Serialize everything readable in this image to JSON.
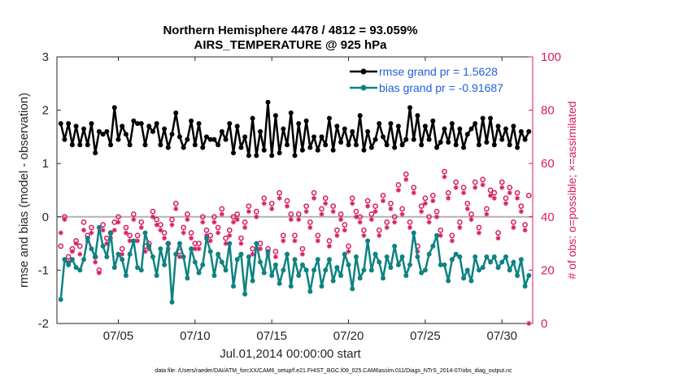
{
  "chart_data": {
    "type": "line",
    "title_line1": "Northern Hemisphere 4478 / 4812 = 93.059%",
    "title_line2": "AIRS_TEMPERATURE @ 925 hPa",
    "xlabel": "Jul.01,2014 00:00:00 start",
    "ylabel_left": "rmse and bias (model - observation)",
    "ylabel_right": "# of obs: o=possible; ×=assimilated",
    "ylim_left": [
      -2,
      3
    ],
    "ylim_right": [
      0,
      100
    ],
    "xlim": [
      1,
      32
    ],
    "xticks": [
      {
        "value": 5,
        "label": "07/05"
      },
      {
        "value": 10,
        "label": "07/10"
      },
      {
        "value": 15,
        "label": "07/15"
      },
      {
        "value": 20,
        "label": "07/20"
      },
      {
        "value": 25,
        "label": "07/25"
      },
      {
        "value": 30,
        "label": "07/30"
      }
    ],
    "yticks_left": [
      "-2",
      "-1",
      "0",
      "1",
      "2",
      "3"
    ],
    "yticks_right": [
      "0",
      "20",
      "40",
      "60",
      "80",
      "100"
    ],
    "legend": [
      "rmse grand pr = 1.5628",
      "bias grand pr = -0.91687"
    ],
    "footnote": "data file: /Users/raeder/DAI/ATM_forcXX/CAM6_setup/f.e21.FHIST_BGC.f09_025.CAM6assim.011/Diags_NTrS_2014-07/obs_diag_output.nc",
    "colors": {
      "rmse": "#000000",
      "bias": "#0e8282",
      "obs": "#d81b60",
      "zero": "#b3b3b3"
    },
    "series": [
      {
        "name": "rmse",
        "x": [
          1.25,
          1.5,
          1.75,
          2,
          2.25,
          2.5,
          2.75,
          3,
          3.25,
          3.5,
          3.75,
          4,
          4.25,
          4.5,
          4.75,
          5,
          5.25,
          5.5,
          5.75,
          6,
          6.25,
          6.5,
          6.75,
          7,
          7.25,
          7.5,
          7.75,
          8,
          8.25,
          8.5,
          8.75,
          9,
          9.25,
          9.5,
          9.75,
          10,
          10.25,
          10.5,
          10.75,
          11,
          11.25,
          11.5,
          11.75,
          12,
          12.25,
          12.5,
          12.75,
          13,
          13.25,
          13.5,
          13.75,
          14,
          14.25,
          14.5,
          14.75,
          15,
          15.25,
          15.5,
          15.75,
          16,
          16.25,
          16.5,
          16.75,
          17,
          17.25,
          17.5,
          17.75,
          18,
          18.25,
          18.5,
          18.75,
          19,
          19.25,
          19.5,
          19.75,
          20,
          20.25,
          20.5,
          20.75,
          21,
          21.25,
          21.5,
          21.75,
          22,
          22.25,
          22.5,
          22.75,
          23,
          23.25,
          23.5,
          23.75,
          24,
          24.25,
          24.5,
          24.75,
          25,
          25.25,
          25.5,
          25.75,
          26,
          26.25,
          26.5,
          26.75,
          27,
          27.25,
          27.5,
          27.75,
          28,
          28.25,
          28.5,
          28.75,
          29,
          29.25,
          29.5,
          29.75,
          30,
          30.25,
          30.5,
          30.75,
          31,
          31.25,
          31.5,
          31.75
        ],
        "values": [
          1.75,
          1.45,
          1.75,
          1.35,
          1.7,
          1.35,
          1.65,
          1.35,
          1.75,
          1.2,
          1.6,
          1.55,
          1.6,
          1.35,
          2.05,
          1.45,
          1.7,
          1.55,
          1.35,
          1.8,
          1.75,
          1.75,
          1.35,
          1.7,
          1.6,
          1.75,
          1.35,
          1.65,
          1.3,
          1.55,
          1.95,
          1.5,
          1.3,
          1.45,
          1.8,
          1.35,
          1.75,
          1.3,
          1.5,
          1.45,
          1.45,
          1.35,
          1.6,
          1.45,
          1.75,
          1.2,
          1.7,
          1.3,
          1.5,
          1.15,
          1.85,
          1.15,
          1.6,
          1.25,
          2.15,
          1.15,
          1.9,
          1.2,
          1.65,
          1.35,
          1.95,
          1.15,
          1.75,
          1.25,
          1.8,
          1.3,
          1.5,
          1.25,
          1.5,
          1.35,
          1.85,
          1.25,
          1.7,
          1.4,
          1.65,
          1.35,
          1.6,
          1.35,
          1.9,
          1.25,
          1.6,
          1.3,
          1.45,
          1.75,
          1.5,
          1.35,
          1.75,
          1.3,
          1.7,
          1.35,
          1.45,
          2.05,
          1.45,
          1.9,
          1.35,
          1.7,
          1.45,
          1.8,
          1.3,
          1.4,
          1.65,
          1.4,
          1.75,
          1.35,
          1.65,
          1.3,
          1.55,
          1.65,
          1.75,
          1.35,
          1.85,
          1.4,
          1.85,
          1.35,
          1.7,
          1.45,
          1.65,
          1.35,
          1.7,
          1.3,
          1.6,
          1.45,
          1.6
        ]
      },
      {
        "name": "bias",
        "x": [
          1.25,
          1.5,
          1.75,
          2,
          2.25,
          2.5,
          2.75,
          3,
          3.25,
          3.5,
          3.75,
          4,
          4.25,
          4.5,
          4.75,
          5,
          5.25,
          5.5,
          5.75,
          6,
          6.25,
          6.5,
          6.75,
          7,
          7.25,
          7.5,
          7.75,
          8,
          8.25,
          8.5,
          8.75,
          9,
          9.25,
          9.5,
          9.75,
          10,
          10.25,
          10.5,
          10.75,
          11,
          11.25,
          11.5,
          11.75,
          12,
          12.25,
          12.5,
          12.75,
          13,
          13.25,
          13.5,
          13.75,
          14,
          14.25,
          14.5,
          14.75,
          15,
          15.25,
          15.5,
          15.75,
          16,
          16.25,
          16.5,
          16.75,
          17,
          17.25,
          17.5,
          17.75,
          18,
          18.25,
          18.5,
          18.75,
          19,
          19.25,
          19.5,
          19.75,
          20,
          20.25,
          20.5,
          20.75,
          21,
          21.25,
          21.5,
          21.75,
          22,
          22.25,
          22.5,
          22.75,
          23,
          23.25,
          23.5,
          23.75,
          24,
          24.25,
          24.5,
          24.75,
          25,
          25.25,
          25.5,
          25.75,
          26,
          26.25,
          26.5,
          26.75,
          27,
          27.25,
          27.5,
          27.75,
          28,
          28.25,
          28.5,
          28.75,
          29,
          29.25,
          29.5,
          29.75,
          30,
          30.25,
          30.5,
          30.75,
          31,
          31.25,
          31.5,
          31.75
        ],
        "values": [
          -1.55,
          -0.8,
          -0.9,
          -0.8,
          -0.95,
          -1.0,
          -0.8,
          -0.4,
          -0.6,
          -0.75,
          -0.2,
          -0.55,
          -0.75,
          -0.3,
          -0.95,
          -0.7,
          -0.8,
          -1.1,
          -0.7,
          -0.45,
          -0.95,
          -1.0,
          -0.3,
          -0.55,
          -0.75,
          -1.1,
          -0.6,
          -0.9,
          -0.5,
          -1.6,
          -0.7,
          -0.5,
          -0.75,
          -1.15,
          -0.6,
          -0.85,
          -1.05,
          -0.9,
          -0.4,
          -0.65,
          -1.1,
          -0.7,
          -0.85,
          -1.0,
          -0.5,
          -1.3,
          -0.8,
          -0.7,
          -1.45,
          -0.75,
          -1.2,
          -0.5,
          -0.85,
          -1.05,
          -0.65,
          -1.1,
          -0.9,
          -1.25,
          -1.0,
          -0.7,
          -1.3,
          -0.8,
          -1.1,
          -0.9,
          -1.0,
          -1.4,
          -1.0,
          -0.8,
          -1.3,
          -1.0,
          -0.8,
          -1.2,
          -0.95,
          -1.1,
          -0.7,
          -0.9,
          -1.35,
          -0.75,
          -1.15,
          -1.0,
          -0.45,
          -1.0,
          -0.7,
          -0.85,
          -1.15,
          -0.75,
          -0.95,
          -0.55,
          -0.9,
          -0.75,
          -1.1,
          -0.9,
          -0.3,
          -0.75,
          -1.05,
          -1.0,
          -0.7,
          -0.55,
          -0.35,
          -0.9,
          -0.9,
          -1.2,
          -0.8,
          -0.7,
          -0.75,
          -1.15,
          -1.0,
          -1.2,
          -0.75,
          -1.0,
          -0.95,
          -0.75,
          -0.85,
          -0.75,
          -0.95,
          -0.85,
          -0.75,
          -1.0,
          -0.85,
          -1.1,
          -0.8,
          -1.3,
          -1.1
        ]
      },
      {
        "name": "obs_possible",
        "x": [
          1.25,
          1.5,
          1.75,
          2,
          2.25,
          2.5,
          2.75,
          3,
          3.25,
          3.5,
          3.75,
          4,
          4.25,
          4.5,
          4.75,
          5,
          5.25,
          5.5,
          5.75,
          6,
          6.25,
          6.5,
          6.75,
          7,
          7.25,
          7.5,
          7.75,
          8,
          8.25,
          8.5,
          8.75,
          9,
          9.25,
          9.5,
          9.75,
          10,
          10.25,
          10.5,
          10.75,
          11,
          11.25,
          11.5,
          11.75,
          12,
          12.25,
          12.5,
          12.75,
          13,
          13.25,
          13.5,
          13.75,
          14,
          14.25,
          14.5,
          14.75,
          15,
          15.25,
          15.5,
          15.75,
          16,
          16.25,
          16.5,
          16.75,
          17,
          17.25,
          17.5,
          17.75,
          18,
          18.25,
          18.5,
          18.75,
          19,
          19.25,
          19.5,
          19.75,
          20,
          20.25,
          20.5,
          20.75,
          21,
          21.25,
          21.5,
          21.75,
          22,
          22.25,
          22.5,
          22.75,
          23,
          23.25,
          23.5,
          23.75,
          24,
          24.25,
          24.5,
          24.75,
          25,
          25.25,
          25.5,
          25.75,
          26,
          26.25,
          26.5,
          26.75,
          27,
          27.25,
          27.5,
          27.75,
          28,
          28.25,
          28.5,
          28.75,
          29,
          29.25,
          29.5,
          29.75,
          30,
          30.25,
          30.5,
          30.75,
          31,
          31.25,
          31.5,
          31.75
        ],
        "values": [
          29,
          40,
          25,
          28,
          31,
          29,
          38,
          33,
          36,
          25,
          20,
          37,
          32,
          34,
          38,
          40,
          28,
          36,
          33,
          41,
          33,
          38,
          29,
          30,
          42,
          39,
          37,
          34,
          30,
          39,
          45,
          27,
          36,
          41,
          34,
          30,
          30,
          40,
          35,
          33,
          40,
          36,
          43,
          32,
          35,
          40,
          41,
          32,
          38,
          44,
          28,
          42,
          30,
          47,
          28,
          45,
          27,
          49,
          33,
          46,
          41,
          33,
          41,
          28,
          44,
          38,
          49,
          33,
          43,
          47,
          31,
          44,
          35,
          41,
          37,
          29,
          47,
          42,
          40,
          35,
          46,
          41,
          44,
          35,
          48,
          38,
          45,
          40,
          52,
          43,
          56,
          38,
          51,
          29,
          44,
          47,
          40,
          48,
          42,
          35,
          57,
          49,
          33,
          53,
          38,
          51,
          45,
          41,
          53,
          36,
          54,
          43,
          50,
          49,
          34,
          53,
          47,
          51,
          38,
          49,
          44,
          37,
          48
        ]
      },
      {
        "name": "obs_assimilated",
        "x": [
          1.25,
          1.5,
          1.75,
          2,
          2.25,
          2.5,
          2.75,
          3,
          3.25,
          3.5,
          3.75,
          4,
          4.25,
          4.5,
          4.75,
          5,
          5.25,
          5.5,
          5.75,
          6,
          6.25,
          6.5,
          6.75,
          7,
          7.25,
          7.5,
          7.75,
          8,
          8.25,
          8.5,
          8.75,
          9,
          9.25,
          9.5,
          9.75,
          10,
          10.25,
          10.5,
          10.75,
          11,
          11.25,
          11.5,
          11.75,
          12,
          12.25,
          12.5,
          12.75,
          13,
          13.25,
          13.5,
          13.75,
          14,
          14.25,
          14.5,
          14.75,
          15,
          15.25,
          15.5,
          15.75,
          16,
          16.25,
          16.5,
          16.75,
          17,
          17.25,
          17.5,
          17.75,
          18,
          18.25,
          18.5,
          18.75,
          19,
          19.25,
          19.5,
          19.75,
          20,
          20.25,
          20.5,
          20.75,
          21,
          21.25,
          21.5,
          21.75,
          22,
          22.25,
          22.5,
          22.75,
          23,
          23.25,
          23.5,
          23.75,
          24,
          24.25,
          24.5,
          24.75,
          25,
          25.25,
          25.5,
          25.75,
          26,
          26.25,
          26.5,
          26.75,
          27,
          27.25,
          27.5,
          27.75,
          28,
          28.25,
          28.5,
          28.75,
          29,
          29.25,
          29.5,
          29.75,
          30,
          30.25,
          30.5,
          30.75,
          31,
          31.25,
          31.5,
          31.75
        ],
        "values": [
          34,
          39,
          23,
          27,
          30,
          26,
          35,
          31,
          34,
          23,
          19,
          35,
          30,
          32,
          35,
          38,
          26,
          34,
          31,
          39,
          31,
          36,
          27,
          28,
          40,
          37,
          35,
          32,
          28,
          37,
          43,
          25,
          34,
          39,
          32,
          28,
          28,
          38,
          33,
          31,
          38,
          34,
          41,
          30,
          33,
          38,
          39,
          30,
          36,
          42,
          26,
          40,
          28,
          45,
          26,
          43,
          25,
          47,
          31,
          44,
          39,
          31,
          39,
          26,
          42,
          36,
          47,
          31,
          41,
          45,
          29,
          42,
          33,
          39,
          35,
          27,
          45,
          40,
          38,
          33,
          44,
          39,
          42,
          33,
          46,
          36,
          43,
          38,
          50,
          41,
          54,
          36,
          49,
          27,
          42,
          45,
          38,
          46,
          40,
          33,
          55,
          47,
          31,
          51,
          36,
          49,
          43,
          39,
          51,
          34,
          52,
          41,
          48,
          47,
          32,
          51,
          45,
          49,
          36,
          47,
          42,
          35,
          0
        ]
      }
    ]
  }
}
